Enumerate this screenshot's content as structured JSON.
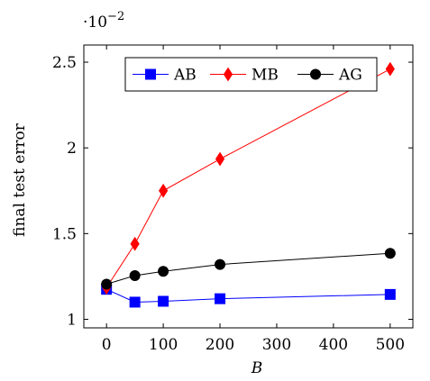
{
  "chart_data": {
    "type": "line",
    "xlabel": "B",
    "ylabel": "final test error",
    "y_multiplier_base": "10",
    "y_multiplier_exp": "−2",
    "xlim": [
      -40,
      540
    ],
    "ylim": [
      0.95,
      2.6
    ],
    "xticks": [
      0,
      100,
      200,
      300,
      400,
      500
    ],
    "yticks": [
      1,
      1.5,
      2,
      2.5
    ],
    "ytick_labels": [
      "1",
      "1.5",
      "2",
      "2.5"
    ],
    "legend_position": "top-right",
    "series": [
      {
        "name": "AB",
        "color": "#0000ff",
        "marker": "square",
        "x": [
          0,
          50,
          100,
          200,
          500
        ],
        "y": [
          1.175,
          1.1,
          1.105,
          1.12,
          1.145
        ]
      },
      {
        "name": "MB",
        "color": "#ff0000",
        "marker": "diamond",
        "x": [
          0,
          50,
          100,
          200,
          500
        ],
        "y": [
          1.185,
          1.44,
          1.75,
          1.935,
          2.46
        ]
      },
      {
        "name": "AG",
        "color": "#000000",
        "marker": "circle",
        "x": [
          0,
          50,
          100,
          200,
          500
        ],
        "y": [
          1.205,
          1.255,
          1.28,
          1.32,
          1.385
        ]
      }
    ]
  }
}
